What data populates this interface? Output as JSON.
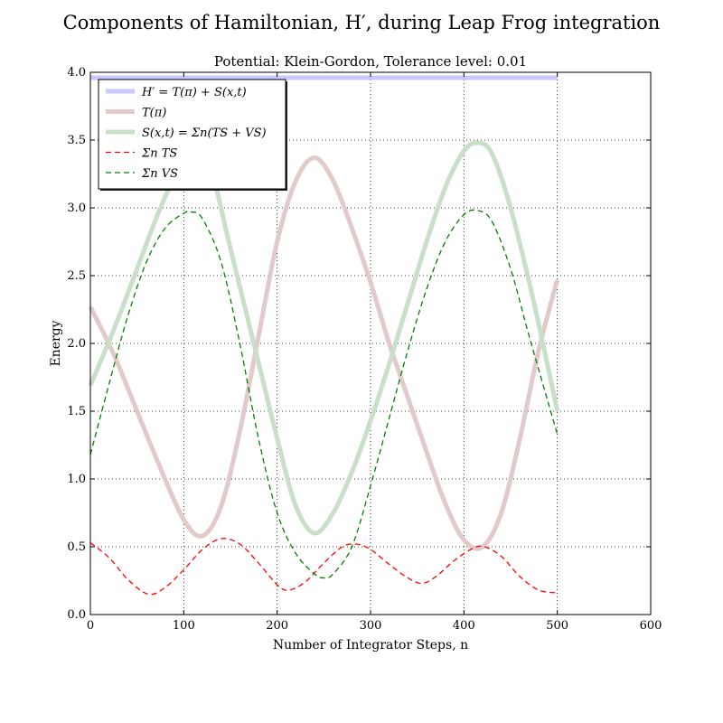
{
  "figure": {
    "title": "Components of Hamiltonian, H′, during Leap Frog integration",
    "subtitle": "Potential: Klein-Gordon, Tolerance level: 0.01"
  },
  "chart_data": {
    "type": "line",
    "title": "Components of Hamiltonian, H′, during Leap Frog integration",
    "subtitle": "Potential: Klein-Gordon, Tolerance level: 0.01",
    "xlabel": "Number of Integrator Steps, n",
    "ylabel": "Energy",
    "xlim": [
      0,
      600
    ],
    "ylim": [
      0,
      4.0
    ],
    "xticks": [
      0,
      100,
      200,
      300,
      400,
      500,
      600
    ],
    "yticks": [
      0.0,
      0.5,
      1.0,
      1.5,
      2.0,
      2.5,
      3.0,
      3.5,
      4.0
    ],
    "xtick_labels": [
      "0",
      "100",
      "200",
      "300",
      "400",
      "500",
      "600"
    ],
    "ytick_labels": [
      "0.0",
      "0.5",
      "1.0",
      "1.5",
      "2.0",
      "2.5",
      "3.0",
      "3.5",
      "4.0"
    ],
    "grid": true,
    "legend_position": "top-left",
    "series": [
      {
        "name": "H′ = T(π) + S(x,t)",
        "color": "#c8c8ff",
        "style": "solid-thick",
        "x": [
          0,
          100,
          200,
          300,
          400,
          500
        ],
        "y": [
          3.96,
          3.96,
          3.96,
          3.96,
          3.96,
          3.96
        ]
      },
      {
        "name": "T(π)",
        "color": "#e3caca",
        "style": "solid-thick",
        "x": [
          0,
          25,
          50,
          75,
          100,
          120,
          140,
          160,
          180,
          200,
          220,
          240,
          260,
          280,
          300,
          320,
          340,
          360,
          380,
          400,
          420,
          440,
          460,
          480,
          500
        ],
        "y": [
          2.27,
          1.92,
          1.5,
          1.08,
          0.7,
          0.58,
          0.8,
          1.35,
          2.05,
          2.75,
          3.2,
          3.37,
          3.2,
          2.85,
          2.45,
          2.0,
          1.6,
          1.2,
          0.82,
          0.55,
          0.5,
          0.75,
          1.3,
          1.95,
          2.47
        ]
      },
      {
        "name": "S(x,t) = Σn(TS + VS)",
        "color": "#c8e0c8",
        "style": "solid-thick",
        "x": [
          0,
          25,
          50,
          75,
          100,
          110,
          125,
          150,
          175,
          200,
          220,
          240,
          260,
          280,
          300,
          320,
          340,
          360,
          380,
          400,
          415,
          430,
          450,
          475,
          500
        ],
        "y": [
          1.69,
          2.1,
          2.55,
          3.0,
          3.36,
          3.45,
          3.4,
          2.7,
          2.0,
          1.3,
          0.8,
          0.6,
          0.75,
          1.05,
          1.43,
          1.85,
          2.3,
          2.75,
          3.15,
          3.42,
          3.48,
          3.4,
          3.0,
          2.3,
          1.5
        ]
      },
      {
        "name": "Σn TS",
        "color": "#ff0000",
        "style": "dashed",
        "x": [
          0,
          20,
          40,
          62,
          80,
          100,
          120,
          140,
          160,
          180,
          200,
          212,
          230,
          250,
          270,
          285,
          300,
          320,
          340,
          355,
          370,
          390,
          410,
          422,
          440,
          460,
          480,
          500
        ],
        "y": [
          0.53,
          0.42,
          0.26,
          0.15,
          0.2,
          0.33,
          0.48,
          0.56,
          0.52,
          0.38,
          0.22,
          0.18,
          0.24,
          0.38,
          0.5,
          0.52,
          0.48,
          0.37,
          0.27,
          0.23,
          0.28,
          0.4,
          0.49,
          0.5,
          0.43,
          0.28,
          0.18,
          0.16
        ]
      },
      {
        "name": "Σn VS",
        "color": "#008000",
        "style": "dashed",
        "x": [
          0,
          20,
          40,
          60,
          80,
          100,
          108,
          120,
          140,
          160,
          180,
          200,
          220,
          240,
          250,
          260,
          280,
          300,
          320,
          340,
          360,
          380,
          400,
          415,
          430,
          450,
          470,
          500
        ],
        "y": [
          1.18,
          1.7,
          2.2,
          2.6,
          2.85,
          2.96,
          2.97,
          2.92,
          2.6,
          2.0,
          1.3,
          0.75,
          0.45,
          0.3,
          0.27,
          0.3,
          0.5,
          0.95,
          1.45,
          1.95,
          2.4,
          2.75,
          2.95,
          2.98,
          2.9,
          2.55,
          2.05,
          1.33
        ]
      }
    ]
  }
}
